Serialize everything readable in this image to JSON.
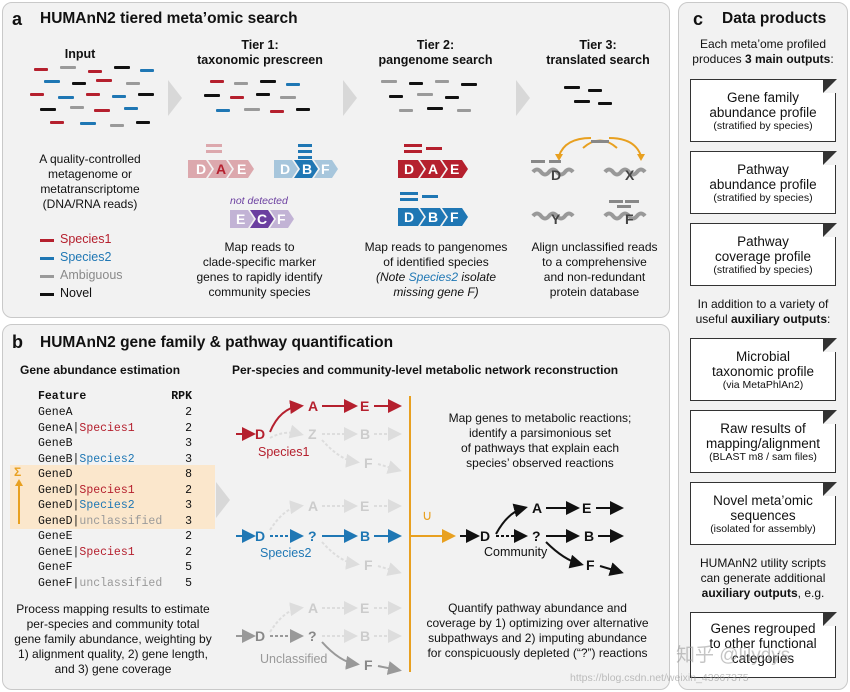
{
  "panel_a": {
    "label": "a",
    "title": "HUMAnN2 tiered meta’omic search",
    "input_title": "Input",
    "input_desc": [
      "A quality-controlled",
      "metagenome or",
      "metatranscriptome",
      "(DNA/RNA reads)"
    ],
    "legend": [
      {
        "label": "Species1",
        "color": "#b5202e"
      },
      {
        "label": "Species2",
        "color": "#1f77b4"
      },
      {
        "label": "Ambiguous",
        "color": "#9a9a9a"
      },
      {
        "label": "Novel",
        "color": "#111111"
      }
    ],
    "tier1": {
      "title_line1": "Tier 1:",
      "title_line2": "taxonomic prescreen",
      "not_detected": "not detected",
      "desc": [
        "Map reads to",
        "clade-specific marker",
        "genes to rapidly identify",
        "community species"
      ]
    },
    "tier2": {
      "title_line1": "Tier 2:",
      "title_line2": "pangenome search",
      "desc1": "Map reads to pangenomes",
      "desc2": "of identified species",
      "desc3_prefix": "(Note ",
      "desc3_species": "Species2",
      "desc3_suffix": " isolate",
      "desc4": "missing gene F)"
    },
    "tier3": {
      "title_line1": "Tier 3:",
      "title_line2": "translated search",
      "desc": [
        "Align unclassified reads",
        "to a comprehensive",
        "and non-redundant",
        "protein database"
      ],
      "protein_labels": [
        "D",
        "X",
        "Y",
        "F"
      ]
    },
    "gene_letters": {
      "s1": [
        "D",
        "A",
        "E"
      ],
      "s2": [
        "D",
        "B",
        "F"
      ],
      "s3": [
        "E",
        "C",
        "F"
      ]
    }
  },
  "panel_b": {
    "label": "b",
    "title": "HUMAnN2 gene family & pathway quantification",
    "sub1": "Gene abundance estimation",
    "sub2": "Per-species and community-level metabolic network reconstruction",
    "table_header": {
      "feature": "Feature",
      "rpk": "RPK"
    },
    "table_rows": [
      {
        "gene": "GeneA",
        "stratum": "",
        "rpk": "2"
      },
      {
        "gene": "GeneA",
        "stratum": "Species1",
        "rpk": "2"
      },
      {
        "gene": "GeneB",
        "stratum": "",
        "rpk": "3"
      },
      {
        "gene": "GeneB",
        "stratum": "Species2",
        "rpk": "3"
      },
      {
        "gene": "GeneD",
        "stratum": "",
        "rpk": "8"
      },
      {
        "gene": "GeneD",
        "stratum": "Species1",
        "rpk": "2"
      },
      {
        "gene": "GeneD",
        "stratum": "Species2",
        "rpk": "3"
      },
      {
        "gene": "GeneD",
        "stratum": "unclassified",
        "rpk": "3"
      },
      {
        "gene": "GeneE",
        "stratum": "",
        "rpk": "2"
      },
      {
        "gene": "GeneE",
        "stratum": "Species1",
        "rpk": "2"
      },
      {
        "gene": "GeneF",
        "stratum": "",
        "rpk": "5"
      },
      {
        "gene": "GeneF",
        "stratum": "unclassified",
        "rpk": "5"
      }
    ],
    "sum_symbol": "Σ",
    "union_symbol": "∪",
    "left_desc": [
      "Process mapping results to estimate",
      "per-species and community total",
      "gene family abundance, weighting by",
      "1) alignment quality,  2) gene length,",
      "and 3) gene coverage"
    ],
    "network_labels": {
      "species1": "Species1",
      "species2": "Species2",
      "unclassified": "Unclassified",
      "community": "Community"
    },
    "nodes": {
      "D": "D",
      "A": "A",
      "E": "E",
      "Z": "Z",
      "B": "B",
      "F": "F",
      "Q": "?"
    },
    "right_desc1": [
      "Map genes to metabolic reactions;",
      "identify a parsimonious set",
      "of pathways that explain each",
      "species’ observed reactions"
    ],
    "right_desc2": [
      "Quantify pathway abundance and",
      "coverage by 1) optimizing over alternative",
      "subpathways and 2) imputing abundance",
      "for conspicuously depleted (“?”) reactions"
    ]
  },
  "panel_c": {
    "label": "c",
    "title": "Data products",
    "intro1": "Each meta’ome profiled",
    "intro2_prefix": "produces ",
    "intro2_bold": "3 main outputs",
    "intro2_suffix": ":",
    "main_outputs": [
      {
        "title": [
          "Gene family",
          "abundance profile"
        ],
        "sub": "(stratified by species)"
      },
      {
        "title": [
          "Pathway",
          "abundance profile"
        ],
        "sub": "(stratified by species)"
      },
      {
        "title": [
          "Pathway",
          "coverage profile"
        ],
        "sub": "(stratified by species)"
      }
    ],
    "aux_intro1": "In addition to a variety of",
    "aux_intro2_prefix": "useful ",
    "aux_intro2_bold": "auxiliary outputs",
    "aux_intro2_suffix": ":",
    "aux_outputs": [
      {
        "title": [
          "Microbial",
          "taxonomic profile"
        ],
        "sub": "(via MetaPhlAn2)"
      },
      {
        "title": [
          "Raw results of",
          "mapping/alignment"
        ],
        "sub": "(BLAST m8 / sam files)"
      },
      {
        "title": [
          "Novel meta’omic",
          "sequences"
        ],
        "sub": "(isolated for assembly)"
      }
    ],
    "util1": "HUMAnN2 utility scripts",
    "util2": "can generate additional",
    "util3_bold": "auxiliary outputs",
    "util3_suffix": ", e.g.",
    "last_output": {
      "title": [
        "Genes regrouped",
        "to other functional",
        "categories"
      ]
    }
  },
  "watermark": "知乎 @lilydys",
  "watermark_url": "https://blog.csdn.net/weixin_43967375",
  "colors": {
    "species1": "#b5202e",
    "species2": "#1f77b4",
    "ambiguous": "#9a9a9a",
    "novel": "#111111",
    "sum": "#e8a020",
    "panel_bg": "#f2f2f2"
  }
}
